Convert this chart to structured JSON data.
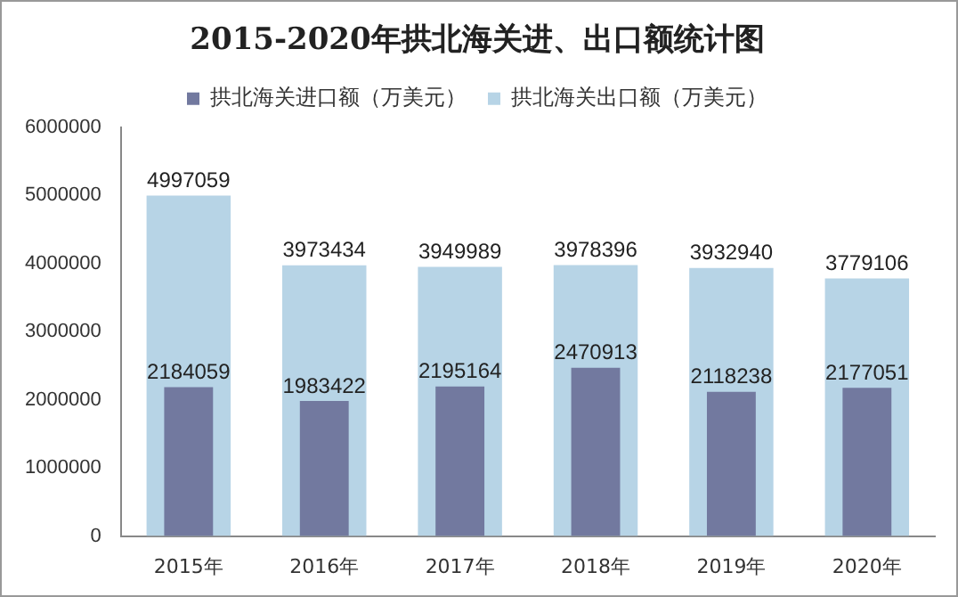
{
  "chart_data": {
    "type": "bar",
    "title": "2015-2020年拱北海关进、出口额统计图",
    "categories": [
      "2015年",
      "2016年",
      "2017年",
      "2018年",
      "2019年",
      "2020年"
    ],
    "series": [
      {
        "name": "拱北海关出口额（万美元）",
        "color": "#b7d4e6",
        "values": [
          4997059,
          3973434,
          3949989,
          3978396,
          3932940,
          3779106
        ]
      },
      {
        "name": "拱北海关进口额（万美元）",
        "color": "#72799f",
        "values": [
          2184059,
          1983422,
          2195164,
          2470913,
          2118238,
          2177051
        ]
      }
    ],
    "ylim": [
      0,
      6000000
    ],
    "yticks": [
      0,
      1000000,
      2000000,
      3000000,
      4000000,
      5000000,
      6000000
    ],
    "grid": false,
    "legend": "top",
    "data_labels": true
  }
}
